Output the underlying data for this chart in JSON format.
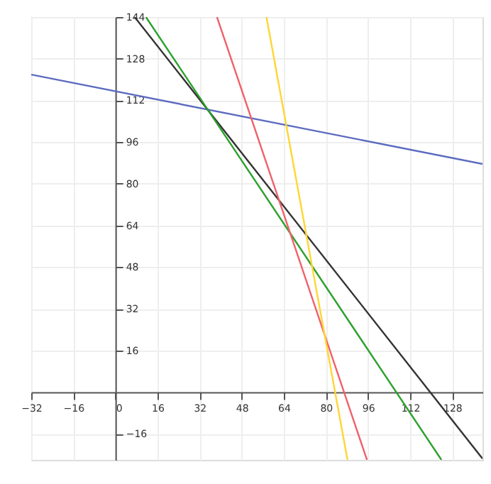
{
  "chart_data": {
    "type": "line",
    "xlim": [
      -32,
      139.5
    ],
    "ylim": [
      -26,
      144
    ],
    "xticks": [
      -32,
      -16,
      0,
      16,
      32,
      48,
      64,
      80,
      96,
      112,
      128
    ],
    "yticks": [
      -16,
      16,
      32,
      48,
      64,
      80,
      96,
      112,
      128,
      144
    ],
    "grid": true,
    "line_style": "solid",
    "marker": "none",
    "series": [
      {
        "color": "#5b6bbf",
        "x": [
          -32,
          139.5
        ],
        "values": [
          121.9,
          87.6
        ]
      },
      {
        "color": "#333333",
        "x": [
          7.3,
          139.5
        ],
        "values": [
          144,
          -25.5
        ]
      },
      {
        "color": "#2ca02c",
        "x": [
          11.6,
          123.9
        ],
        "values": [
          144,
          -26
        ]
      },
      {
        "color": "#f0616a",
        "x": [
          38.6,
          95.6
        ],
        "values": [
          144,
          -26
        ]
      },
      {
        "color": "#ffd633",
        "x": [
          57.4,
          88.2
        ],
        "values": [
          144,
          -26
        ]
      }
    ]
  }
}
